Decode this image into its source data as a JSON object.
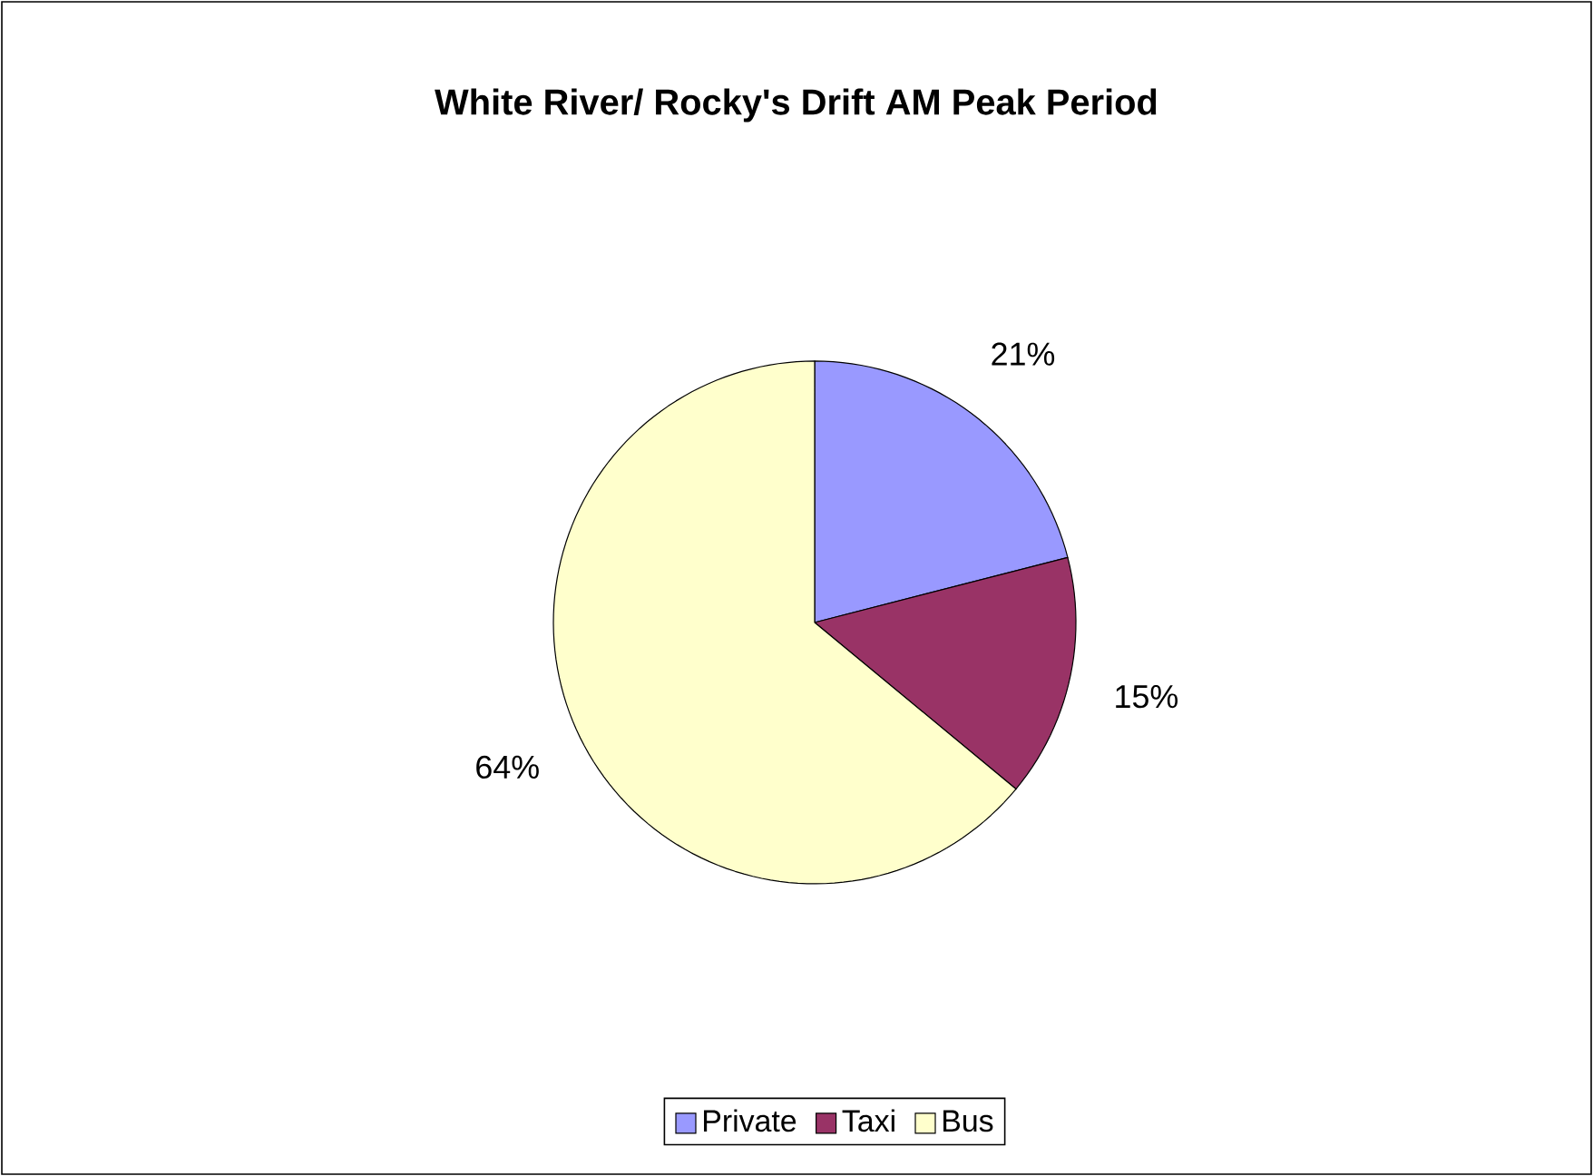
{
  "chart_data": {
    "type": "pie",
    "title": "White River/ Rocky's Drift  AM Peak Period",
    "categories": [
      "Private",
      "Taxi",
      "Bus"
    ],
    "values": [
      21,
      15,
      64
    ],
    "colors": [
      "#9999ff",
      "#993366",
      "#ffffcc"
    ],
    "value_labels": [
      "21%",
      "15%",
      "64%"
    ],
    "legend": "bottom"
  }
}
